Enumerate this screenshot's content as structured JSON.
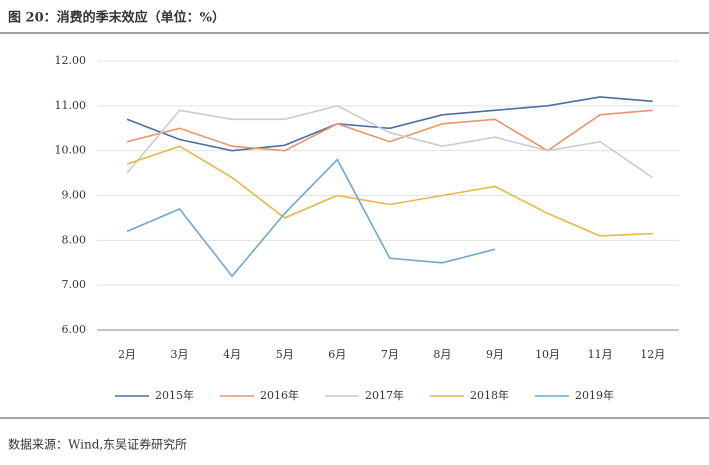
{
  "chart_data": {
    "type": "line",
    "title": "图 20：消费的季末效应（单位：%）",
    "source": "数据来源：Wind,东吴证券研究所",
    "categories": [
      "2月",
      "3月",
      "4月",
      "5月",
      "6月",
      "7月",
      "8月",
      "9月",
      "10月",
      "11月",
      "12月"
    ],
    "series": [
      {
        "name": "2015年",
        "color": "#4a6fa5",
        "values": [
          10.7,
          10.25,
          10.0,
          10.12,
          10.6,
          10.5,
          10.8,
          10.9,
          11.0,
          11.2,
          11.1
        ]
      },
      {
        "name": "2016年",
        "color": "#e8956b",
        "values": [
          10.2,
          10.5,
          10.1,
          10.0,
          10.6,
          10.2,
          10.6,
          10.7,
          10.0,
          10.8,
          10.9
        ]
      },
      {
        "name": "2017年",
        "color": "#cccccc",
        "values": [
          9.5,
          10.9,
          10.7,
          10.7,
          11.0,
          10.4,
          10.1,
          10.3,
          10.0,
          10.2,
          9.4
        ]
      },
      {
        "name": "2018年",
        "color": "#e6b84a",
        "values": [
          9.7,
          10.1,
          9.4,
          8.5,
          9.0,
          8.8,
          9.0,
          9.2,
          8.6,
          8.1,
          8.15
        ]
      },
      {
        "name": "2019年",
        "color": "#6fa8d0",
        "values": [
          8.2,
          8.7,
          7.2,
          8.6,
          9.8,
          7.6,
          7.5,
          7.8,
          null,
          null,
          null
        ]
      }
    ],
    "ylim": [
      6,
      12
    ],
    "yticks": [
      {
        "value": 6,
        "label": "6.00"
      },
      {
        "value": 7,
        "label": "7.00"
      },
      {
        "value": 8,
        "label": "8.00"
      },
      {
        "value": 9,
        "label": "9.00"
      },
      {
        "value": 10,
        "label": "10.00"
      },
      {
        "value": 11,
        "label": "11.00"
      },
      {
        "value": 12,
        "label": "12.00"
      }
    ],
    "grid": true,
    "legend": "bottom"
  }
}
